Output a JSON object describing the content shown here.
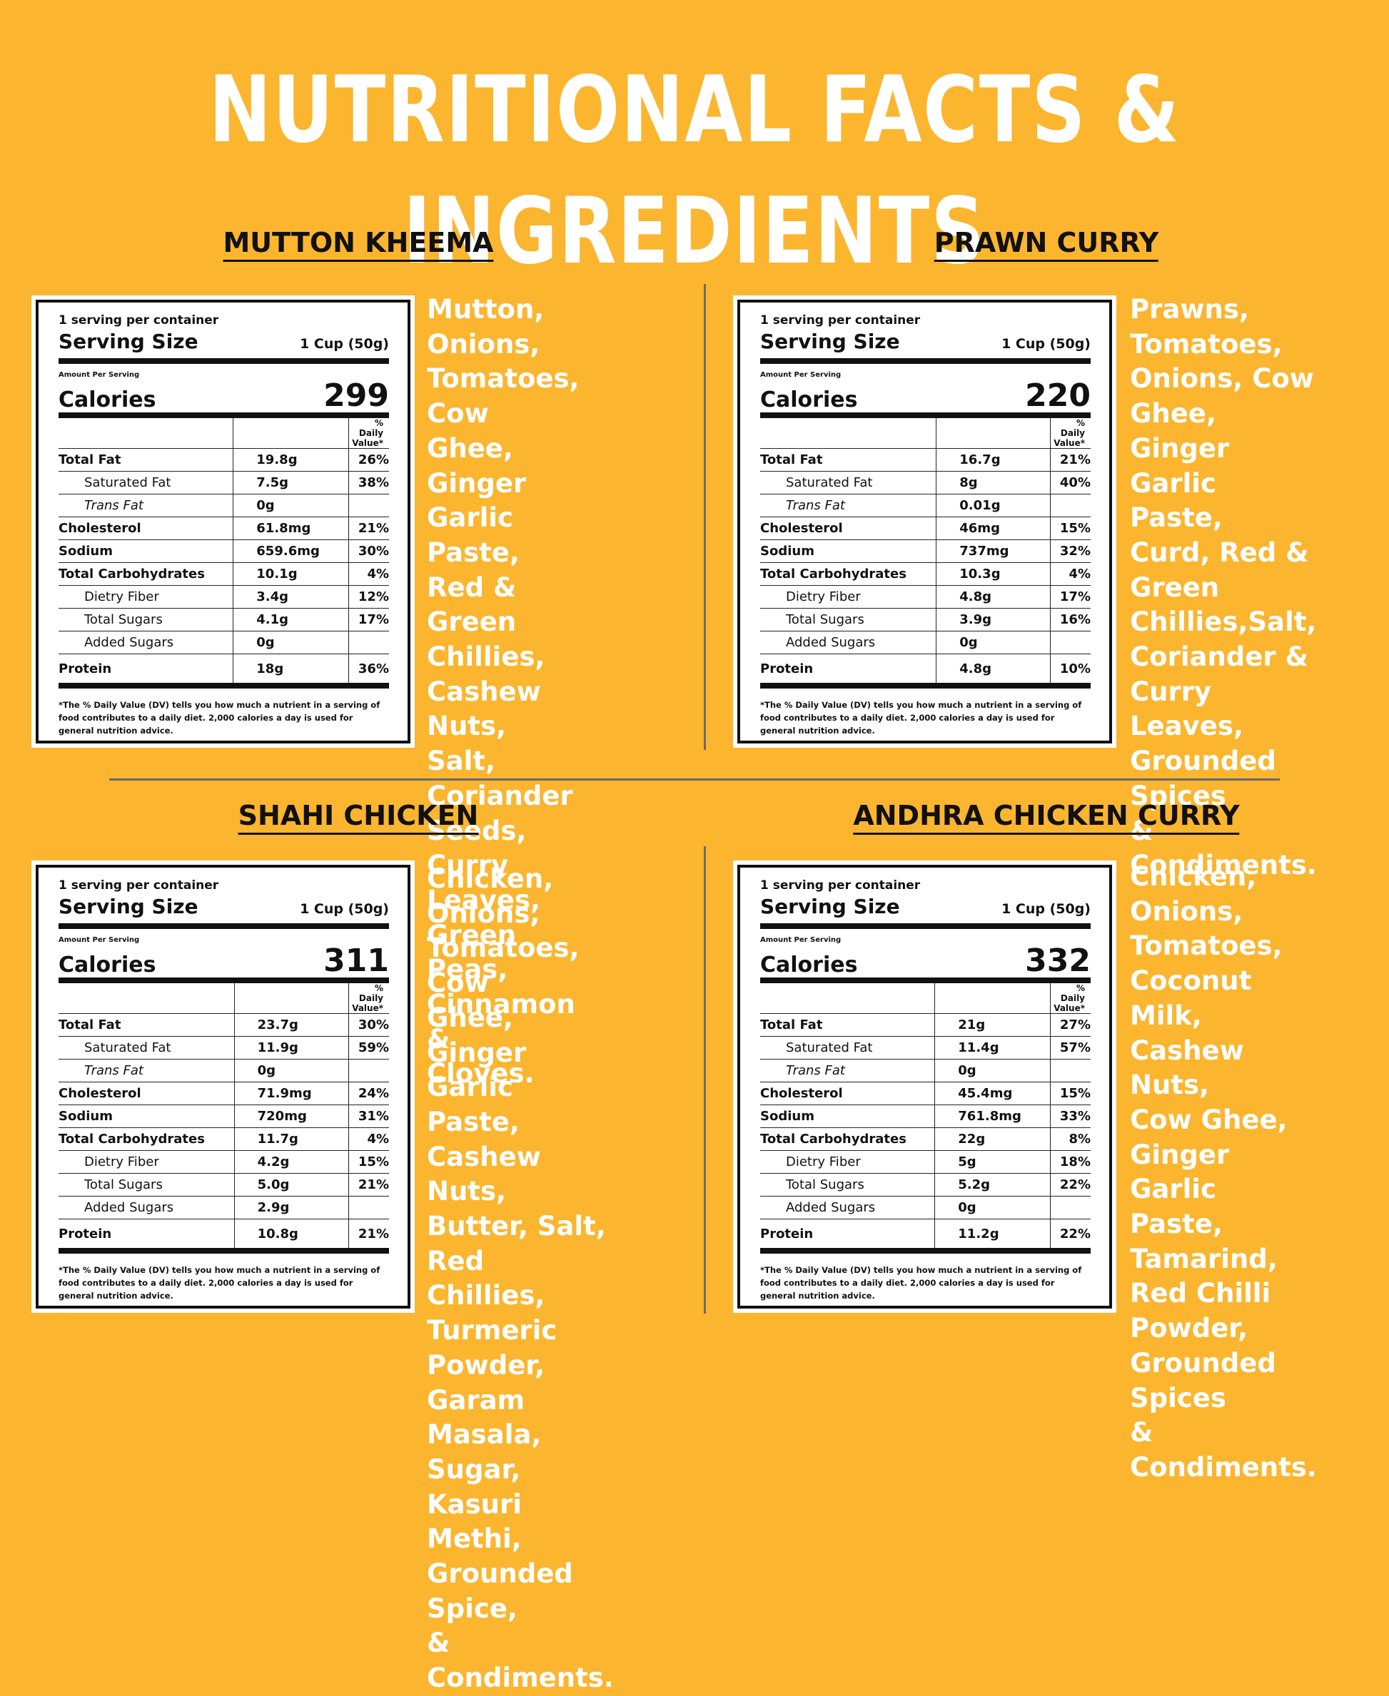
{
  "title": "NUTRITIONAL FACTS & INGREDIENTS",
  "label_text": {
    "servings": "1 serving per container",
    "serving_size_label": "Serving Size",
    "serving_size_value": "1 Cup (50g)",
    "amount_per_serving": "Amount Per Serving",
    "calories_label": "Calories",
    "dv_header": "% Daily Value*",
    "footnote": "*The % Daily Value (DV) tells you how much a nutrient in a serving of food contributes to a daily diet. 2,000 calories a day is used for general nutrition advice."
  },
  "products": [
    {
      "name": "MUTTON KHEEMA",
      "calories": "299",
      "rows": [
        {
          "name": "Total Fat",
          "amount": "19.8g",
          "dv": "26%"
        },
        {
          "name": "Saturated Fat",
          "amount": "7.5g",
          "dv": "38%"
        },
        {
          "name": "Trans Fat",
          "amount": "0g",
          "dv": ""
        },
        {
          "name": "Cholesterol",
          "amount": "61.8mg",
          "dv": "21%"
        },
        {
          "name": "Sodium",
          "amount": "659.6mg",
          "dv": "30%"
        },
        {
          "name": "Total Carbohydrates",
          "amount": "10.1g",
          "dv": "4%"
        },
        {
          "name": "Dietry Fiber",
          "amount": "3.4g",
          "dv": "12%"
        },
        {
          "name": "Total Sugars",
          "amount": "4.1g",
          "dv": "17%"
        },
        {
          "name": "Added Sugars",
          "amount": "0g",
          "dv": ""
        },
        {
          "name": "Protein",
          "amount": "18g",
          "dv": "36%"
        }
      ],
      "ingredients": "Mutton, Onions,\nTomatoes, Cow\nGhee, Ginger\nGarlic Paste, Red &\nGreen Chillies,\nCashew Nuts, Salt,\nCoriander Seeds,\nCurry Leaves,\nGreen Peas,\nCinnamon &\nCloves."
    },
    {
      "name": "PRAWN CURRY",
      "calories": "220",
      "rows": [
        {
          "name": "Total Fat",
          "amount": "16.7g",
          "dv": "21%"
        },
        {
          "name": "Saturated Fat",
          "amount": "8g",
          "dv": "40%"
        },
        {
          "name": "Trans Fat",
          "amount": "0.01g",
          "dv": ""
        },
        {
          "name": "Cholesterol",
          "amount": "46mg",
          "dv": "15%"
        },
        {
          "name": "Sodium",
          "amount": "737mg",
          "dv": "32%"
        },
        {
          "name": "Total Carbohydrates",
          "amount": "10.3g",
          "dv": "4%"
        },
        {
          "name": "Dietry Fiber",
          "amount": "4.8g",
          "dv": "17%"
        },
        {
          "name": "Total Sugars",
          "amount": "3.9g",
          "dv": "16%"
        },
        {
          "name": "Added Sugars",
          "amount": "0g",
          "dv": ""
        },
        {
          "name": "Protein",
          "amount": "4.8g",
          "dv": "10%"
        }
      ],
      "ingredients": "Prawns,\nTomatoes,\nOnions, Cow\nGhee, Ginger\nGarlic Paste,\nCurd, Red &\nGreen\nChillies,Salt,\nCoriander &\nCurry Leaves,\nGrounded\nSpices\n& Condiments."
    },
    {
      "name": "SHAHI CHICKEN",
      "calories": "311",
      "rows": [
        {
          "name": "Total Fat",
          "amount": "23.7g",
          "dv": "30%"
        },
        {
          "name": "Saturated Fat",
          "amount": "11.9g",
          "dv": "59%"
        },
        {
          "name": "Trans Fat",
          "amount": "0g",
          "dv": ""
        },
        {
          "name": "Cholesterol",
          "amount": "71.9mg",
          "dv": "24%"
        },
        {
          "name": "Sodium",
          "amount": "720mg",
          "dv": "31%"
        },
        {
          "name": "Total Carbohydrates",
          "amount": "11.7g",
          "dv": "4%"
        },
        {
          "name": "Dietry Fiber",
          "amount": "4.2g",
          "dv": "15%"
        },
        {
          "name": "Total Sugars",
          "amount": "5.0g",
          "dv": "21%"
        },
        {
          "name": "Added Sugars",
          "amount": "2.9g",
          "dv": ""
        },
        {
          "name": "Protein",
          "amount": "10.8g",
          "dv": "21%"
        }
      ],
      "ingredients": "Chicken, Onions,\nTomatoes, Cow\nGhee, Ginger\nGarlic Paste,\nCashew Nuts,\nButter, Salt, Red\nChillies, Turmeric\nPowder, Garam\nMasala, Sugar,\nKasuri Methi,\nGrounded Spice,\n& Condiments."
    },
    {
      "name": "ANDHRA CHICKEN CURRY",
      "calories": "332",
      "rows": [
        {
          "name": "Total Fat",
          "amount": "21g",
          "dv": "27%"
        },
        {
          "name": "Saturated Fat",
          "amount": "11.4g",
          "dv": "57%"
        },
        {
          "name": "Trans Fat",
          "amount": "0g",
          "dv": ""
        },
        {
          "name": "Cholesterol",
          "amount": "45.4mg",
          "dv": "15%"
        },
        {
          "name": "Sodium",
          "amount": "761.8mg",
          "dv": "33%"
        },
        {
          "name": "Total Carbohydrates",
          "amount": "22g",
          "dv": "8%"
        },
        {
          "name": "Dietry Fiber",
          "amount": "5g",
          "dv": "18%"
        },
        {
          "name": "Total Sugars",
          "amount": "5.2g",
          "dv": "22%"
        },
        {
          "name": "Added Sugars",
          "amount": "0g",
          "dv": ""
        },
        {
          "name": "Protein",
          "amount": "11.2g",
          "dv": "22%"
        }
      ],
      "ingredients": "Chicken, Onions,\nTomatoes,\nCoconut Milk,\nCashew Nuts,\nCow Ghee,\nGinger Garlic\nPaste, Tamarind,\nRed Chilli\nPowder,\nGrounded Spices\n& Condiments."
    }
  ]
}
